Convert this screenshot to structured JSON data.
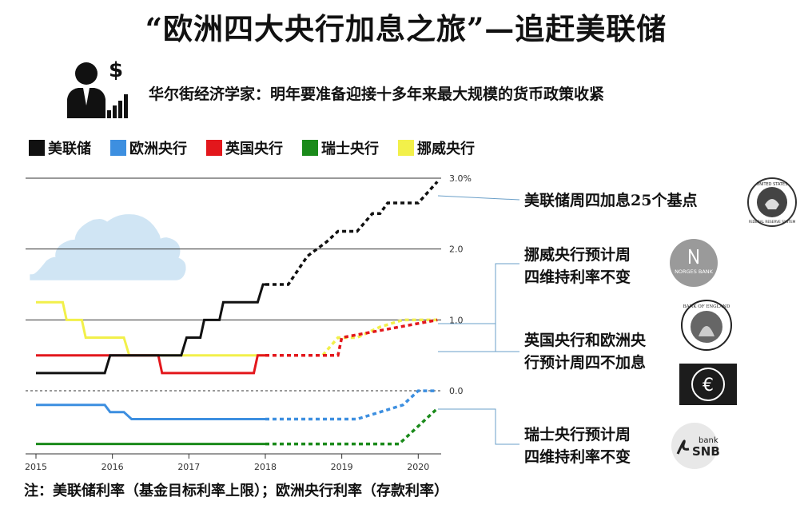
{
  "header": {
    "title": "“欧洲四大央行加息之旅”—追赶美联储",
    "subtitle": "华尔街经济学家：明年要准备迎接十多年来最大规模的货币政策收紧"
  },
  "icons": {
    "person": "businessman-with-dollar-chart-icon"
  },
  "legend": [
    {
      "label": "美联储",
      "color": "#111111"
    },
    {
      "label": "欧洲央行",
      "color": "#3d8fe0"
    },
    {
      "label": "英国央行",
      "color": "#e3171c"
    },
    {
      "label": "瑞士央行",
      "color": "#1a8a1a"
    },
    {
      "label": "挪威央行",
      "color": "#f2f04a"
    }
  ],
  "annotations": {
    "fed": "美联储周四加息25个基点",
    "norway_line1": "挪威央行预计周",
    "norway_line2": "四维持利率不变",
    "boe_ecb_line1": "英国央行和欧洲央",
    "boe_ecb_line2": "行预计周四不加息",
    "snb_line1": "瑞士央行预计周",
    "snb_line2": "四维持利率不变"
  },
  "logos": {
    "fed": {
      "top": "UNITED STATES",
      "bottom": "FEDERAL RESERVE SYSTEM"
    },
    "norges": "NORGES BANK",
    "boe": "BANK OF ENGLAND",
    "snb_small": "bank",
    "snb": "SNB"
  },
  "footnote": "注：美联储利率（基金目标利率上限）；欧洲央行利率（存款利率）",
  "chart_data": {
    "type": "line",
    "ylim": [
      -0.8,
      3.0
    ],
    "xlim": [
      2015.0,
      2020.3
    ],
    "y_ticks": [
      {
        "value": 3.0,
        "label": "3.0%"
      },
      {
        "value": 2.0,
        "label": "2.0"
      },
      {
        "value": 1.0,
        "label": "1.0"
      },
      {
        "value": 0.0,
        "label": "0.0"
      }
    ],
    "x_ticks": [
      {
        "value": 2015,
        "label": "2015"
      },
      {
        "value": 2016,
        "label": "2016"
      },
      {
        "value": 2017,
        "label": "2017"
      },
      {
        "value": 2018,
        "label": "2018"
      },
      {
        "value": 2019,
        "label": "2019"
      },
      {
        "value": 2020,
        "label": "2020"
      }
    ],
    "forecast_start": 2018.0,
    "series": [
      {
        "name": "美联储",
        "color": "#111111",
        "points": [
          [
            2015.0,
            0.25
          ],
          [
            2015.9,
            0.25
          ],
          [
            2015.97,
            0.5
          ],
          [
            2016.9,
            0.5
          ],
          [
            2016.97,
            0.75
          ],
          [
            2017.15,
            0.75
          ],
          [
            2017.2,
            1.0
          ],
          [
            2017.4,
            1.0
          ],
          [
            2017.45,
            1.25
          ],
          [
            2017.9,
            1.25
          ],
          [
            2017.97,
            1.5
          ],
          [
            2018.0,
            1.5
          ],
          [
            2018.3,
            1.5
          ],
          [
            2018.55,
            1.9
          ],
          [
            2018.8,
            2.1
          ],
          [
            2018.95,
            2.25
          ],
          [
            2019.2,
            2.25
          ],
          [
            2019.4,
            2.5
          ],
          [
            2019.5,
            2.5
          ],
          [
            2019.6,
            2.65
          ],
          [
            2020.0,
            2.65
          ],
          [
            2020.25,
            2.95
          ]
        ]
      },
      {
        "name": "欧洲央行",
        "color": "#3d8fe0",
        "points": [
          [
            2015.0,
            -0.2
          ],
          [
            2015.9,
            -0.2
          ],
          [
            2015.97,
            -0.3
          ],
          [
            2016.15,
            -0.3
          ],
          [
            2016.25,
            -0.4
          ],
          [
            2018.0,
            -0.4
          ],
          [
            2018.0,
            -0.4
          ],
          [
            2019.2,
            -0.4
          ],
          [
            2019.5,
            -0.3
          ],
          [
            2019.8,
            -0.2
          ],
          [
            2020.0,
            0.0
          ],
          [
            2020.25,
            0.0
          ]
        ]
      },
      {
        "name": "英国央行",
        "color": "#e3171c",
        "points": [
          [
            2015.0,
            0.5
          ],
          [
            2016.6,
            0.5
          ],
          [
            2016.65,
            0.25
          ],
          [
            2017.85,
            0.25
          ],
          [
            2017.9,
            0.5
          ],
          [
            2018.0,
            0.5
          ],
          [
            2018.95,
            0.5
          ],
          [
            2019.0,
            0.75
          ],
          [
            2020.25,
            1.0
          ]
        ]
      },
      {
        "name": "瑞士央行",
        "color": "#1a8a1a",
        "points": [
          [
            2015.0,
            -0.75
          ],
          [
            2018.0,
            -0.75
          ],
          [
            2018.0,
            -0.75
          ],
          [
            2019.75,
            -0.75
          ],
          [
            2020.25,
            -0.25
          ]
        ]
      },
      {
        "name": "挪威央行",
        "color": "#f2f04a",
        "points": [
          [
            2015.0,
            1.25
          ],
          [
            2015.35,
            1.25
          ],
          [
            2015.4,
            1.0
          ],
          [
            2015.6,
            1.0
          ],
          [
            2015.65,
            0.75
          ],
          [
            2016.15,
            0.75
          ],
          [
            2016.22,
            0.5
          ],
          [
            2018.0,
            0.5
          ],
          [
            2018.0,
            0.5
          ],
          [
            2018.75,
            0.5
          ],
          [
            2018.95,
            0.75
          ],
          [
            2019.2,
            0.75
          ],
          [
            2019.5,
            0.9
          ],
          [
            2019.8,
            1.0
          ],
          [
            2020.25,
            1.0
          ]
        ]
      }
    ]
  }
}
